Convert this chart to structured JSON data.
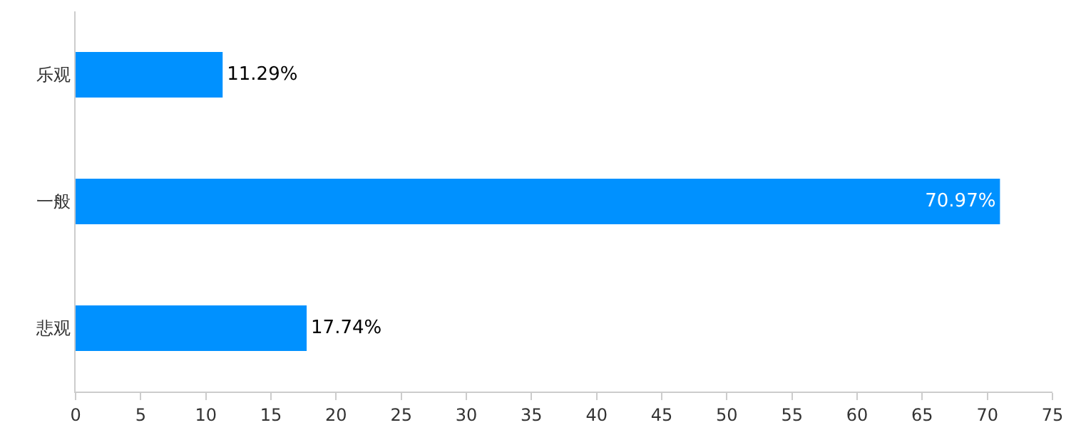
{
  "chart_data": {
    "type": "bar",
    "orientation": "horizontal",
    "categories": [
      "乐观",
      "一般",
      "悲观"
    ],
    "values": [
      11.29,
      70.97,
      17.74
    ],
    "color": "#0091ff",
    "value_labels": [
      "11.29%",
      "70.97%",
      "17.74%"
    ],
    "xlim": [
      0,
      75
    ],
    "xticks": [
      0,
      5,
      10,
      15,
      20,
      25,
      30,
      35,
      40,
      45,
      50,
      55,
      60,
      65,
      70,
      75
    ],
    "grid": false,
    "legend": false
  }
}
